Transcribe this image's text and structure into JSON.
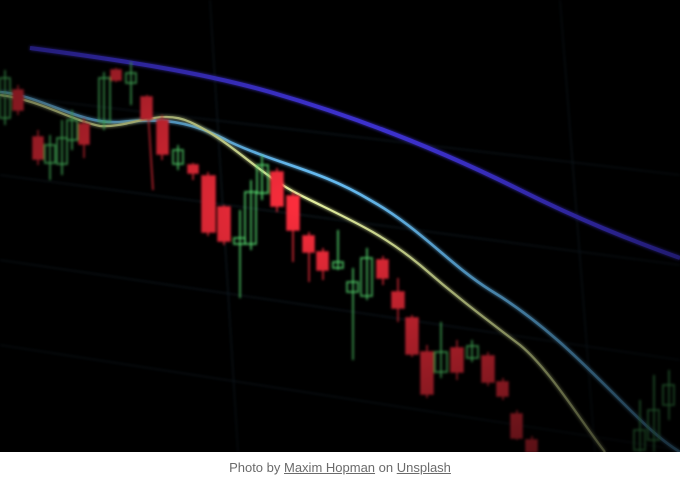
{
  "caption": {
    "prefix": "Photo by ",
    "author": "Maxim Hopman",
    "middle": " on ",
    "source": "Unsplash"
  },
  "photo": {
    "subject": "candlestick-chart-screen",
    "colors": {
      "background": "#000000",
      "bull": "#5ef07a",
      "bear": "#ff2e3e",
      "ma_long": "#4a3aff",
      "ma_mid": "#6cc8ff",
      "ma_short": "#e8f0a0",
      "grid": "#1f3a4a"
    }
  }
}
